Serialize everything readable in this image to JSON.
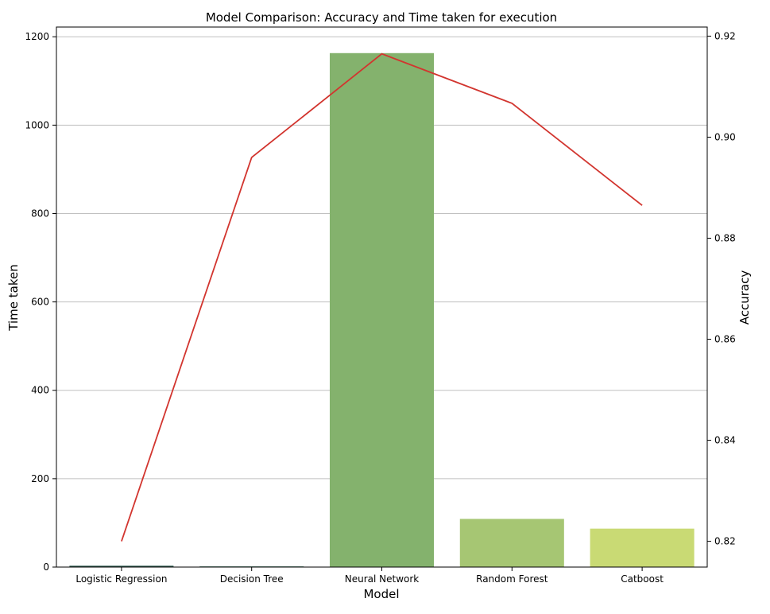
{
  "chart_data": {
    "type": "bar+line",
    "title": "Model Comparison: Accuracy and Time taken for execution",
    "xlabel": "Model",
    "ylabel_left": "Time taken",
    "ylabel_right": "Accuracy",
    "categories": [
      "Logistic Regression",
      "Decision Tree",
      "Neural Network",
      "Random Forest",
      "Catboost"
    ],
    "series": [
      {
        "name": "Time taken",
        "kind": "bar",
        "axis": "left",
        "values": [
          3,
          1.5,
          1163,
          109,
          87
        ],
        "colors": [
          "#2f5c50",
          "#3e7860",
          "#84b26d",
          "#a6c673",
          "#c9da74"
        ]
      },
      {
        "name": "Accuracy",
        "kind": "line",
        "axis": "right",
        "values": [
          0.82,
          0.896,
          0.9165,
          0.9067,
          0.8865
        ],
        "color": "#d2352f"
      }
    ],
    "ylim_left": [
      0,
      1222
    ],
    "ylim_right": [
      0.8149,
      0.9218
    ],
    "yticks_left": [
      "0",
      "200",
      "400",
      "600",
      "800",
      "1000",
      "1200"
    ],
    "yticks_right": [
      "0.82",
      "0.84",
      "0.86",
      "0.88",
      "0.90",
      "0.92"
    ],
    "grid": "horizontal",
    "colors": {
      "left_label": "#2ca02c",
      "right_label": "#d62728",
      "grid": "#c0c0c0"
    }
  }
}
